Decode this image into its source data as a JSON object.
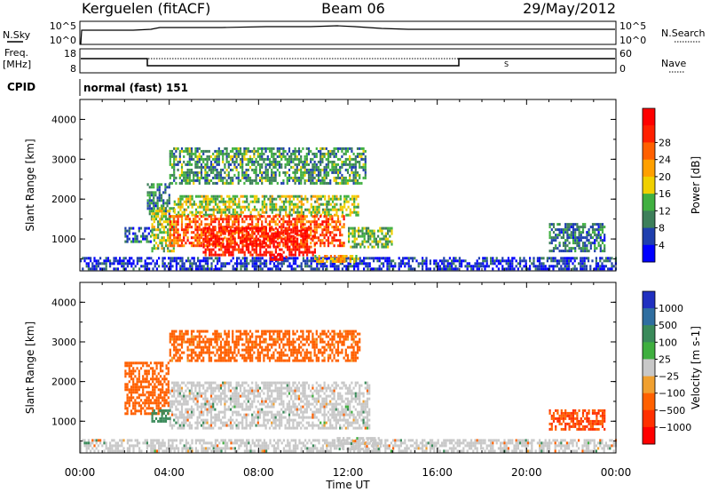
{
  "header": {
    "station": "Kerguelen (fitACF)",
    "beam": "Beam 06",
    "date": "29/May/2012"
  },
  "side_labels": {
    "nsky": "N.Sky",
    "nsearch": "N.Search",
    "freq_line1": "Freq.",
    "freq_line2": "[MHz]",
    "nave": "Nave",
    "cpid": "CPID",
    "cpid_value": "normal (fast) 151"
  },
  "noise_panel": {
    "left_ticks": [
      "10^5",
      "10^0"
    ],
    "right_ticks": [
      "10^5",
      "10^0"
    ]
  },
  "freq_panel": {
    "left_ticks": [
      "18",
      "8"
    ],
    "right_ticks": [
      "60",
      "0"
    ]
  },
  "chart_data": [
    {
      "type": "heatmap",
      "name": "power",
      "ylabel": "Slant Range [km]",
      "xlim": [
        0,
        24
      ],
      "ylim": [
        200,
        4500
      ],
      "yticks": [
        "1000",
        "2000",
        "3000",
        "4000"
      ],
      "colorbar": {
        "label": "Power [dB]",
        "ticks": [
          "4",
          "8",
          "12",
          "16",
          "20",
          "24",
          "28"
        ],
        "colors": [
          "#0000ff",
          "#1f3fae",
          "#3d7f5a",
          "#40b040",
          "#f0d000",
          "#ffa000",
          "#ff6000",
          "#ff2000",
          "#ff0000"
        ]
      },
      "regions": [
        {
          "t": [
            0.0,
            24.0
          ],
          "r": [
            250,
            550
          ],
          "level": 4
        },
        {
          "t": [
            2.0,
            3.2
          ],
          "r": [
            900,
            1300
          ],
          "level": 6
        },
        {
          "t": [
            3.0,
            4.0
          ],
          "r": [
            1500,
            2400
          ],
          "level": 8
        },
        {
          "t": [
            4.0,
            12.8
          ],
          "r": [
            2400,
            3300
          ],
          "level": 10
        },
        {
          "t": [
            3.2,
            4.2
          ],
          "r": [
            700,
            1800
          ],
          "level": 14
        },
        {
          "t": [
            4.2,
            12.5
          ],
          "r": [
            1600,
            2100
          ],
          "level": 14
        },
        {
          "t": [
            4.0,
            11.8
          ],
          "r": [
            800,
            1600
          ],
          "level": 24
        },
        {
          "t": [
            5.5,
            10.5
          ],
          "r": [
            600,
            1300
          ],
          "level": 28
        },
        {
          "t": [
            8.5,
            9.2
          ],
          "r": [
            500,
            650
          ],
          "level": 30
        },
        {
          "t": [
            12.0,
            14.0
          ],
          "r": [
            800,
            1300
          ],
          "level": 12
        },
        {
          "t": [
            10.5,
            12.5
          ],
          "r": [
            400,
            600
          ],
          "level": 18
        },
        {
          "t": [
            21.0,
            23.5
          ],
          "r": [
            700,
            1400
          ],
          "level": 8
        }
      ]
    },
    {
      "type": "heatmap",
      "name": "velocity",
      "ylabel": "Slant Range [km]",
      "xlim": [
        0,
        24
      ],
      "ylim": [
        200,
        4500
      ],
      "yticks": [
        "1000",
        "2000",
        "3000",
        "4000"
      ],
      "colorbar": {
        "label": "Velocity [m s-1]",
        "ticks": [
          "1000",
          "500",
          "100",
          "25",
          "−25",
          "−100",
          "−500",
          "−1000"
        ],
        "colors": [
          "#2030c0",
          "#2f6ea0",
          "#3a8a5a",
          "#3faf3f",
          "#c8c8c8",
          "#f0a030",
          "#ff6000",
          "#ff3000",
          "#ff0000"
        ]
      },
      "regions": [
        {
          "t": [
            0.0,
            24.0
          ],
          "r": [
            250,
            550
          ],
          "level": 0
        },
        {
          "t": [
            4.0,
            13.0
          ],
          "r": [
            800,
            2000
          ],
          "level": 0
        },
        {
          "t": [
            2.0,
            4.0
          ],
          "r": [
            1200,
            2500
          ],
          "level": -120
        },
        {
          "t": [
            4.0,
            12.5
          ],
          "r": [
            2500,
            3300
          ],
          "level": -110
        },
        {
          "t": [
            3.2,
            4.0
          ],
          "r": [
            1000,
            1300
          ],
          "level": 110
        },
        {
          "t": [
            11.5,
            13.5
          ],
          "r": [
            300,
            600
          ],
          "level": 0
        },
        {
          "t": [
            21.0,
            23.5
          ],
          "r": [
            800,
            1300
          ],
          "level": -300
        }
      ]
    }
  ],
  "x_axis": {
    "label": "Time UT",
    "ticks": [
      "00:00",
      "04:00",
      "08:00",
      "12:00",
      "16:00",
      "20:00",
      "00:00"
    ]
  }
}
